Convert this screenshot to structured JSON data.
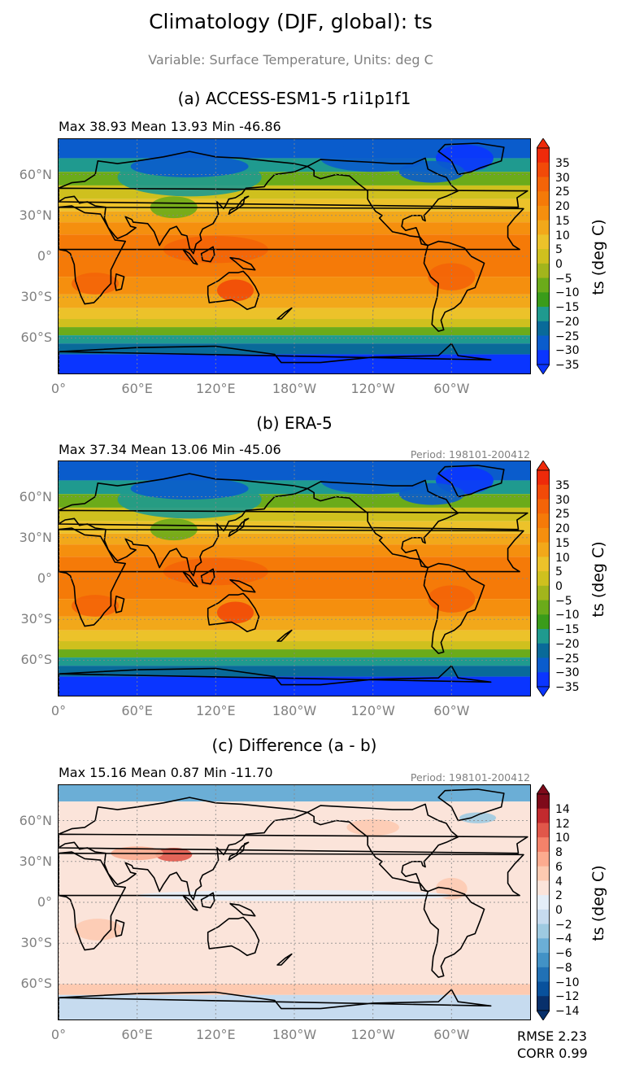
{
  "figure": {
    "title": "Climatology (DJF, global): ts",
    "subtitle": "Variable: Surface Temperature, Units: deg C"
  },
  "axes": {
    "lat_ticks": [
      "60°N",
      "30°N",
      "0°",
      "30°S",
      "60°S"
    ],
    "lon_ticks": [
      "0°",
      "60°E",
      "120°E",
      "180°W",
      "120°W",
      "60°W"
    ]
  },
  "panels": [
    {
      "title": "(a) ACCESS-ESM1-5 r1i1p1f1",
      "stats": "Max 38.93 Mean 13.93 Min -46.86",
      "period": "",
      "colorbar_label": "ts (deg C)",
      "colorbar_ticks": [
        "35",
        "30",
        "25",
        "20",
        "15",
        "10",
        "5",
        "0",
        "−5",
        "−10",
        "−15",
        "−20",
        "−25",
        "−30",
        "−35"
      ]
    },
    {
      "title": "(b) ERA-5",
      "stats": "Max 37.34 Mean 13.06 Min -45.06",
      "period": "Period: 198101-200412",
      "colorbar_label": "ts (deg C)",
      "colorbar_ticks": [
        "35",
        "30",
        "25",
        "20",
        "15",
        "10",
        "5",
        "0",
        "−5",
        "−10",
        "−15",
        "−20",
        "−25",
        "−30",
        "−35"
      ]
    },
    {
      "title": "(c) Difference (a - b)",
      "stats": "Max 15.16 Mean 0.87 Min -11.70",
      "period": "Period: 198101-200412",
      "colorbar_label": "ts (deg C)",
      "colorbar_ticks": [
        "14",
        "12",
        "10",
        "8",
        "6",
        "4",
        "2",
        "0",
        "−2",
        "−4",
        "−6",
        "−8",
        "−10",
        "−12",
        "−14"
      ]
    }
  ],
  "metrics": {
    "rmse": "RMSE 2.23",
    "corr": "CORR 0.99"
  },
  "colors": {
    "temp_scale": [
      "#0a35ff",
      "#0a5ccc",
      "#096a99",
      "#1f9a8f",
      "#3a9c1a",
      "#6bab1a",
      "#a2b51c",
      "#cfc01e",
      "#ecc22a",
      "#f2a81a",
      "#f58f0e",
      "#f57a08",
      "#f46408",
      "#f24a08",
      "#ef2a0a"
    ],
    "diff_scale": [
      "#08306b",
      "#08519c",
      "#2171b5",
      "#4292c6",
      "#6baed6",
      "#9ecae1",
      "#c6dbef",
      "#e4eef8",
      "#fbe4da",
      "#fdcab1",
      "#fcab8f",
      "#f4826a",
      "#e0574a",
      "#c22a2e",
      "#7f0a1a"
    ]
  }
}
